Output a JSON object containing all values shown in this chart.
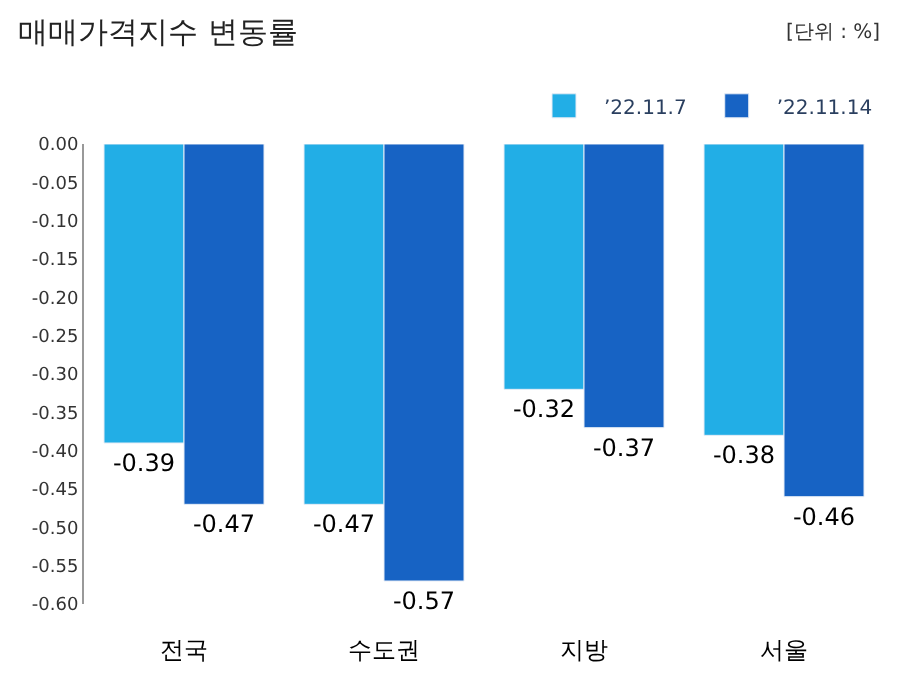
{
  "chart_data": {
    "type": "bar",
    "title": "매매가격지수 변동률",
    "annotations": [
      "[단위 : %]"
    ],
    "categories": [
      "전국",
      "수도권",
      "지방",
      "서울"
    ],
    "series": [
      {
        "name": "’22.11.7",
        "color": "#22aee6",
        "values": [
          -0.39,
          -0.47,
          -0.32,
          -0.38
        ]
      },
      {
        "name": "’22.11.14",
        "color": "#1763c4",
        "values": [
          -0.47,
          -0.57,
          -0.37,
          -0.46
        ]
      }
    ],
    "ylim": [
      -0.6,
      0
    ],
    "yticks": [
      {
        "value": 0,
        "label": "0.00"
      },
      {
        "value": -0.05,
        "label": "-0.05"
      },
      {
        "value": -0.1,
        "label": "-0.10"
      },
      {
        "value": -0.15,
        "label": "-0.15"
      },
      {
        "value": -0.2,
        "label": "-0.20"
      },
      {
        "value": -0.25,
        "label": "-0.25"
      },
      {
        "value": -0.3,
        "label": "-0.30"
      },
      {
        "value": -0.35,
        "label": "-0.35"
      },
      {
        "value": -0.4,
        "label": "-0.40"
      },
      {
        "value": -0.45,
        "label": "-0.45"
      },
      {
        "value": -0.5,
        "label": "-0.50"
      },
      {
        "value": -0.55,
        "label": "-0.55"
      },
      {
        "value": -0.6,
        "label": "-0.60"
      }
    ],
    "data_labels": true,
    "legend": "top right"
  }
}
